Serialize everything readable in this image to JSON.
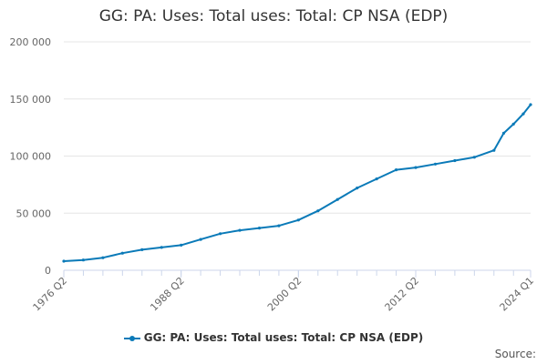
{
  "title": "GG: PA: Uses: Total uses: Total: CP NSA (EDP)",
  "source_label": "Source:",
  "colors": {
    "series": "#0a7ab8",
    "grid": "#e6e6e6",
    "axis": "#ccd6eb"
  },
  "chart_data": {
    "type": "line",
    "title": "GG: PA: Uses: Total uses: Total: CP NSA (EDP)",
    "xlabel": "",
    "ylabel": "",
    "ylim": [
      0,
      200000
    ],
    "y_ticks": [
      0,
      50000,
      100000,
      150000,
      200000
    ],
    "y_tick_labels": [
      "0",
      "50 000",
      "100 000",
      "150 000",
      "200 000"
    ],
    "x_ticks": [
      "1976 Q2",
      "1988 Q2",
      "2000 Q2",
      "2012 Q2",
      "2024 Q1"
    ],
    "grid": true,
    "legend": "bottom-center",
    "series": [
      {
        "name": "GG: PA: Uses: Total uses: Total: CP NSA (EDP)",
        "points": [
          {
            "x": "1976 Q2",
            "y": 8000
          },
          {
            "x": "1978 Q2",
            "y": 9000
          },
          {
            "x": "1980 Q2",
            "y": 11000
          },
          {
            "x": "1982 Q2",
            "y": 15000
          },
          {
            "x": "1984 Q2",
            "y": 18000
          },
          {
            "x": "1986 Q2",
            "y": 20000
          },
          {
            "x": "1988 Q2",
            "y": 22000
          },
          {
            "x": "1990 Q2",
            "y": 27000
          },
          {
            "x": "1992 Q2",
            "y": 32000
          },
          {
            "x": "1994 Q2",
            "y": 35000
          },
          {
            "x": "1996 Q2",
            "y": 37000
          },
          {
            "x": "1998 Q2",
            "y": 39000
          },
          {
            "x": "2000 Q2",
            "y": 44000
          },
          {
            "x": "2002 Q2",
            "y": 52000
          },
          {
            "x": "2004 Q2",
            "y": 62000
          },
          {
            "x": "2006 Q2",
            "y": 72000
          },
          {
            "x": "2008 Q2",
            "y": 80000
          },
          {
            "x": "2010 Q2",
            "y": 88000
          },
          {
            "x": "2012 Q2",
            "y": 90000
          },
          {
            "x": "2014 Q2",
            "y": 93000
          },
          {
            "x": "2016 Q2",
            "y": 96000
          },
          {
            "x": "2018 Q2",
            "y": 99000
          },
          {
            "x": "2020 Q2",
            "y": 105000
          },
          {
            "x": "2021 Q2",
            "y": 120000
          },
          {
            "x": "2022 Q2",
            "y": 128000
          },
          {
            "x": "2023 Q2",
            "y": 137000
          },
          {
            "x": "2024 Q1",
            "y": 145000
          }
        ]
      }
    ]
  }
}
